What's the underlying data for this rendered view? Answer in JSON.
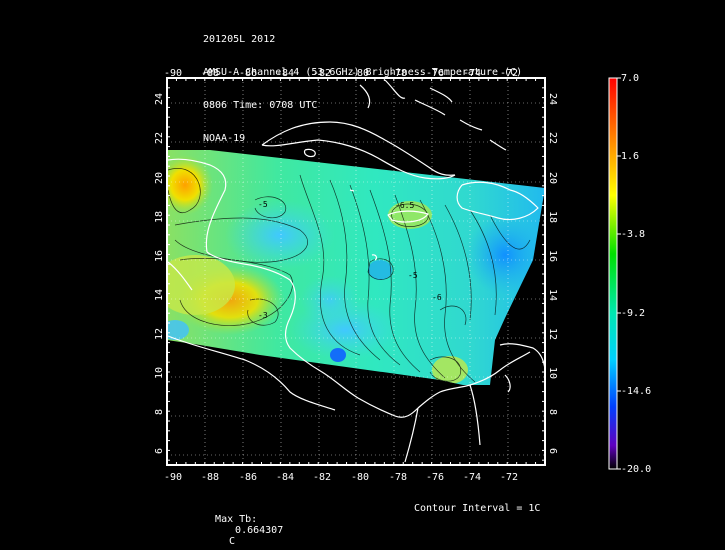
{
  "title": {
    "line1": "201205L 2012",
    "line2": "AMSU-A Channel 4 (53.6GHz) Brightness Temperature (C)",
    "line3": "0806 Time: 0708 UTC",
    "line4": "NOAA-19"
  },
  "map": {
    "lon_range": [
      -90,
      -70
    ],
    "lat_range": [
      5,
      25
    ],
    "lon_ticks": [
      "-90",
      "-88",
      "-86",
      "-84",
      "-82",
      "-80",
      "-78",
      "-76",
      "-74",
      "-72"
    ],
    "lat_ticks": [
      "6",
      "8",
      "10",
      "12",
      "14",
      "16",
      "18",
      "20",
      "22",
      "24"
    ],
    "contour_labels": [
      "-5",
      "-6.5",
      "-5",
      "-3",
      "-6"
    ],
    "grid": "dotted"
  },
  "colorbar": {
    "ticks": [
      "7.0",
      "1.6",
      "-3.8",
      "-9.2",
      "-14.6",
      "-20.0"
    ],
    "min": -20.0,
    "max": 7.0
  },
  "footer": {
    "max_label": "Max Tb:",
    "max_value": "0.664307",
    "max_unit": "C",
    "contour_interval": "Contour Interval = 1C"
  },
  "colors": {
    "background": "#000000",
    "text": "#ffffff",
    "coastline": "#ffffff",
    "contour": "#000000"
  }
}
